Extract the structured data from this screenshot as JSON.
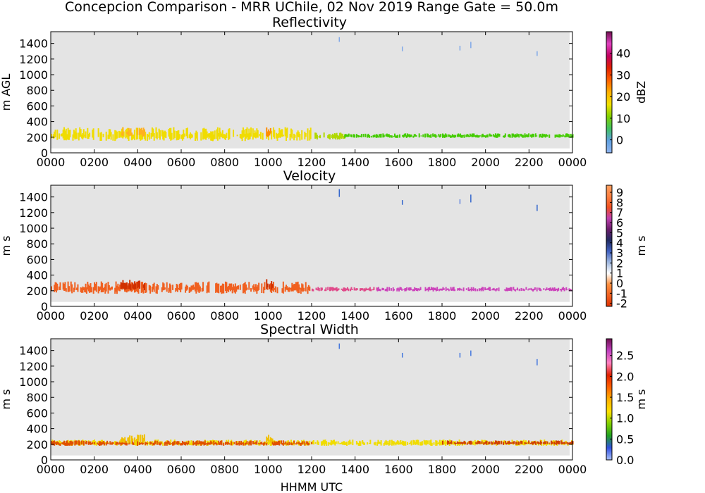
{
  "figure": {
    "suptitle": "Concepcion Comparison - MRR UChile, 02 Nov 2019 Range Gate = 50.0m",
    "xlabel": "HHMM UTC"
  },
  "chart_data": [
    {
      "type": "heatmap",
      "title": "Reflectivity",
      "ylabel": "m AGL",
      "xticks": [
        "0000",
        "0200",
        "0400",
        "0600",
        "0800",
        "1000",
        "1200",
        "1400",
        "1600",
        "1800",
        "2000",
        "2200",
        "0000"
      ],
      "xlim_hours": [
        0,
        24
      ],
      "yticks": [
        0,
        200,
        400,
        600,
        800,
        1000,
        1200,
        1400
      ],
      "ylim": [
        0,
        1550
      ],
      "colorbar": {
        "label": "dBZ",
        "range": [
          -6,
          50
        ],
        "ticks": [
          "0",
          "10",
          "20",
          "30",
          "40"
        ],
        "tick_values": [
          0,
          10,
          20,
          30,
          40
        ]
      },
      "segments": [
        {
          "t": [
            0,
            12
          ],
          "zmin": 150,
          "zmax": 330,
          "color": "#f0dc00"
        },
        {
          "t": [
            3.2,
            4.3
          ],
          "zmin": 200,
          "zmax": 330,
          "color": "#ffb020"
        },
        {
          "t": [
            9.9,
            10.2
          ],
          "zmin": 200,
          "zmax": 340,
          "color": "#ff8c00"
        },
        {
          "t": [
            12,
            13.5
          ],
          "zmin": 170,
          "zmax": 260,
          "color": "#b0d800"
        },
        {
          "t": [
            13.5,
            24
          ],
          "zmin": 190,
          "zmax": 250,
          "color": "#44cc00"
        }
      ],
      "echoes": [
        {
          "t": 13.25,
          "z": [
            1420,
            1480
          ],
          "color": "#7fa8e8"
        },
        {
          "t": 16.15,
          "z": [
            1300,
            1360
          ],
          "color": "#7fa8e8"
        },
        {
          "t": 18.8,
          "z": [
            1310,
            1370
          ],
          "color": "#7fa8e8"
        },
        {
          "t": 19.3,
          "z": [
            1340,
            1420
          ],
          "color": "#7fa8e8"
        },
        {
          "t": 22.35,
          "z": [
            1240,
            1300
          ],
          "color": "#7fa8e8"
        }
      ]
    },
    {
      "type": "heatmap",
      "title": "Velocity",
      "ylabel": "m s",
      "xticks": [
        "0000",
        "0200",
        "0400",
        "0600",
        "0800",
        "1000",
        "1200",
        "1400",
        "1600",
        "1800",
        "2000",
        "2200",
        "0000"
      ],
      "xlim_hours": [
        0,
        24
      ],
      "yticks": [
        0,
        200,
        400,
        600,
        800,
        1000,
        1200,
        1400
      ],
      "ylim": [
        0,
        1550
      ],
      "colorbar": {
        "label": "m s",
        "range": [
          -2.3,
          9.7
        ],
        "ticks": [
          "-2",
          "-1",
          "0",
          "1",
          "2",
          "3",
          "4",
          "5",
          "6",
          "7",
          "8",
          "9"
        ],
        "tick_values": [
          -2,
          -1,
          0,
          1,
          2,
          3,
          4,
          5,
          6,
          7,
          8,
          9
        ]
      },
      "segments": [
        {
          "t": [
            0,
            12
          ],
          "zmin": 160,
          "zmax": 320,
          "color": "#f06020"
        },
        {
          "t": [
            3.2,
            4.3
          ],
          "zmin": 200,
          "zmax": 340,
          "color": "#d03000"
        },
        {
          "t": [
            9.9,
            10.2
          ],
          "zmin": 200,
          "zmax": 350,
          "color": "#d03000"
        },
        {
          "t": [
            12,
            15
          ],
          "zmin": 190,
          "zmax": 250,
          "color": "#e04a8a"
        },
        {
          "t": [
            15,
            24
          ],
          "zmin": 190,
          "zmax": 250,
          "color": "#cc44bb"
        }
      ],
      "echoes": [
        {
          "t": 13.25,
          "z": [
            1400,
            1500
          ],
          "color": "#3366cc"
        },
        {
          "t": 16.15,
          "z": [
            1300,
            1360
          ],
          "color": "#3366cc"
        },
        {
          "t": 18.8,
          "z": [
            1310,
            1370
          ],
          "color": "#6688dd"
        },
        {
          "t": 19.3,
          "z": [
            1330,
            1430
          ],
          "color": "#3366cc"
        },
        {
          "t": 22.35,
          "z": [
            1220,
            1300
          ],
          "color": "#3366cc"
        }
      ]
    },
    {
      "type": "heatmap",
      "title": "Spectral Width",
      "ylabel": "m s",
      "xticks": [
        "0000",
        "0200",
        "0400",
        "0600",
        "0800",
        "1000",
        "1200",
        "1400",
        "1600",
        "1800",
        "2000",
        "2200",
        "0000"
      ],
      "xlim_hours": [
        0,
        24
      ],
      "yticks": [
        0,
        200,
        400,
        600,
        800,
        1000,
        1200,
        1400
      ],
      "ylim": [
        0,
        1550
      ],
      "colorbar": {
        "label": "m s",
        "range": [
          0,
          2.9
        ],
        "ticks": [
          "0.0",
          "0.5",
          "1.0",
          "1.5",
          "2.0",
          "2.5"
        ],
        "tick_values": [
          0,
          0.5,
          1.0,
          1.5,
          2.0,
          2.5
        ]
      },
      "segments": [
        {
          "t": [
            0,
            24
          ],
          "zmin": 180,
          "zmax": 260,
          "color": "#f0dc00"
        },
        {
          "t": [
            0,
            12
          ],
          "zmin": 180,
          "zmax": 250,
          "color": "#e05000"
        },
        {
          "t": [
            3.2,
            4.3
          ],
          "zmin": 200,
          "zmax": 330,
          "color": "#f0c000"
        },
        {
          "t": [
            9.9,
            10.2
          ],
          "zmin": 200,
          "zmax": 340,
          "color": "#f0c000"
        },
        {
          "t": [
            18,
            24
          ],
          "zmin": 190,
          "zmax": 250,
          "color": "#d04000"
        }
      ],
      "echoes": [
        {
          "t": 13.25,
          "z": [
            1420,
            1490
          ],
          "color": "#4477dd"
        },
        {
          "t": 16.15,
          "z": [
            1310,
            1370
          ],
          "color": "#4477dd"
        },
        {
          "t": 18.8,
          "z": [
            1310,
            1370
          ],
          "color": "#4477dd"
        },
        {
          "t": 19.3,
          "z": [
            1330,
            1400
          ],
          "color": "#4477dd"
        },
        {
          "t": 22.35,
          "z": [
            1210,
            1290
          ],
          "color": "#4477dd"
        }
      ]
    }
  ]
}
